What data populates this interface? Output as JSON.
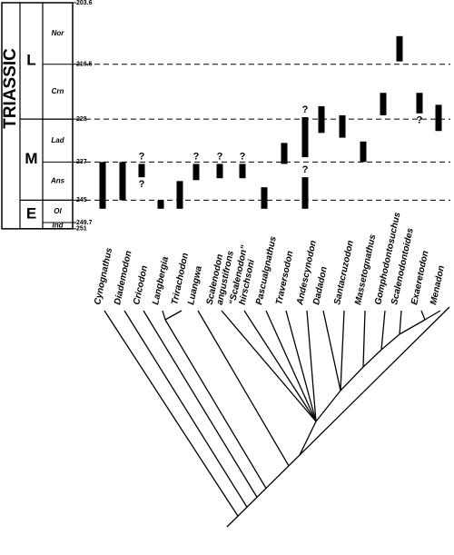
{
  "timescale": {
    "period": "TRIASSIC",
    "ticks": [
      203.6,
      216.5,
      228,
      237,
      245,
      249.7,
      251
    ],
    "epochs": [
      {
        "label": "L",
        "top": 203.6,
        "base": 228
      },
      {
        "label": "M",
        "top": 228,
        "base": 245
      },
      {
        "label": "E",
        "top": 245,
        "base": 251
      }
    ],
    "stages": [
      {
        "label": "Nor",
        "top": 203.6,
        "base": 216.5
      },
      {
        "label": "Crn",
        "top": 216.5,
        "base": 228
      },
      {
        "label": "Lad",
        "top": 228,
        "base": 237
      },
      {
        "label": "Ans",
        "top": 237,
        "base": 245
      },
      {
        "label": "Ol",
        "top": 245,
        "base": 249.7
      },
      {
        "label": "Ind",
        "top": 249.7,
        "base": 251
      }
    ],
    "dashed_lines": [
      216.5,
      228,
      237,
      245
    ]
  },
  "taxa": [
    {
      "lines": [
        "Cynognathus"
      ],
      "ranges": [
        {
          "top": 237,
          "base": 246.8
        }
      ]
    },
    {
      "lines": [
        "Diademodon"
      ],
      "ranges": [
        {
          "top": 237,
          "base": 245
        }
      ]
    },
    {
      "lines": [
        "Cricodon"
      ],
      "ranges": [
        {
          "top": 237.4,
          "base": 240.2,
          "query_top": "?",
          "query_base": "?"
        }
      ]
    },
    {
      "lines": [
        "Langbergia"
      ],
      "ranges": [
        {
          "top": 245,
          "base": 246.8
        }
      ]
    },
    {
      "lines": [
        "Trirachodon"
      ],
      "ranges": [
        {
          "top": 241,
          "base": 246.8
        }
      ]
    },
    {
      "lines": [
        "Luangwa"
      ],
      "ranges": [
        {
          "top": 237.4,
          "base": 240.8,
          "query_top": "?"
        }
      ]
    },
    {
      "lines": [
        "Scalenodon",
        "angustifrons"
      ],
      "ranges": [
        {
          "top": 237.4,
          "base": 240.4,
          "query_top": "?"
        }
      ]
    },
    {
      "lines": [
        "“Scalenodon”",
        "hirschsoni"
      ],
      "ranges": [
        {
          "top": 237.4,
          "base": 240.4,
          "query_top": "?"
        }
      ]
    },
    {
      "lines": [
        "Pascualgnathus"
      ],
      "ranges": [
        {
          "top": 242.3,
          "base": 246.8
        }
      ]
    },
    {
      "lines": [
        "Traversodon"
      ],
      "ranges": [
        {
          "top": 233,
          "base": 237.4
        }
      ]
    },
    {
      "lines": [
        "Andescynodon"
      ],
      "ranges": [
        {
          "top": 227.6,
          "base": 236,
          "query_top": "?"
        },
        {
          "top": 240.2,
          "base": 246.8,
          "query_top": "?"
        }
      ]
    },
    {
      "lines": [
        "Dadadon"
      ],
      "ranges": [
        {
          "top": 225.3,
          "base": 230.9
        }
      ]
    },
    {
      "lines": [
        "Santacruzodon"
      ],
      "ranges": [
        {
          "top": 227.2,
          "base": 231.9
        }
      ]
    },
    {
      "lines": [
        "Massetognathus"
      ],
      "ranges": [
        {
          "top": 232.7,
          "base": 237
        }
      ]
    },
    {
      "lines": [
        "Gomphodontosuchus"
      ],
      "ranges": [
        {
          "top": 222.5,
          "base": 227.2
        }
      ]
    },
    {
      "lines": [
        "Scalenodontoides"
      ],
      "ranges": [
        {
          "top": 210.6,
          "base": 215.9
        }
      ]
    },
    {
      "lines": [
        "Exaeretodon"
      ],
      "ranges": [
        {
          "top": 222.5,
          "base": 226.8,
          "query_base": "?"
        }
      ]
    },
    {
      "lines": [
        "Menadon"
      ],
      "ranges": [
        {
          "top": 225,
          "base": 230.5
        }
      ]
    }
  ]
}
